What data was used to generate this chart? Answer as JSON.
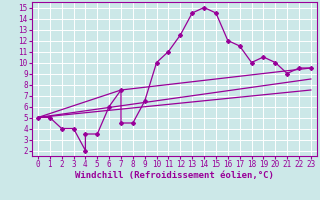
{
  "xlabel": "Windchill (Refroidissement éolien,°C)",
  "bg_color": "#cce8e8",
  "line_color": "#990099",
  "grid_color": "#ffffff",
  "xlim": [
    -0.5,
    23.5
  ],
  "ylim": [
    1.5,
    15.5
  ],
  "xticks": [
    0,
    1,
    2,
    3,
    4,
    5,
    6,
    7,
    8,
    9,
    10,
    11,
    12,
    13,
    14,
    15,
    16,
    17,
    18,
    19,
    20,
    21,
    22,
    23
  ],
  "yticks": [
    2,
    3,
    4,
    5,
    6,
    7,
    8,
    9,
    10,
    11,
    12,
    13,
    14,
    15
  ],
  "line1_x": [
    0,
    1,
    2,
    3,
    4,
    4,
    5,
    6,
    7,
    7,
    8,
    9,
    10,
    11,
    12,
    13,
    14,
    15,
    16,
    17,
    18,
    19,
    20,
    21,
    22,
    23
  ],
  "line1_y": [
    5,
    5,
    4,
    4,
    2,
    3.5,
    3.5,
    6,
    7.5,
    4.5,
    4.5,
    6.5,
    10,
    11,
    12.5,
    14.5,
    15,
    14.5,
    12,
    11.5,
    10,
    10.5,
    10,
    9,
    9.5,
    9.5
  ],
  "line2_x": [
    0,
    7,
    23
  ],
  "line2_y": [
    5,
    7.5,
    9.5
  ],
  "line3_x": [
    0,
    23
  ],
  "line3_y": [
    5,
    8.5
  ],
  "line4_x": [
    0,
    23
  ],
  "line4_y": [
    5,
    7.5
  ],
  "marker": "D",
  "markersize": 2,
  "linewidth": 0.9,
  "xlabel_fontsize": 6.5,
  "tick_fontsize": 5.5
}
